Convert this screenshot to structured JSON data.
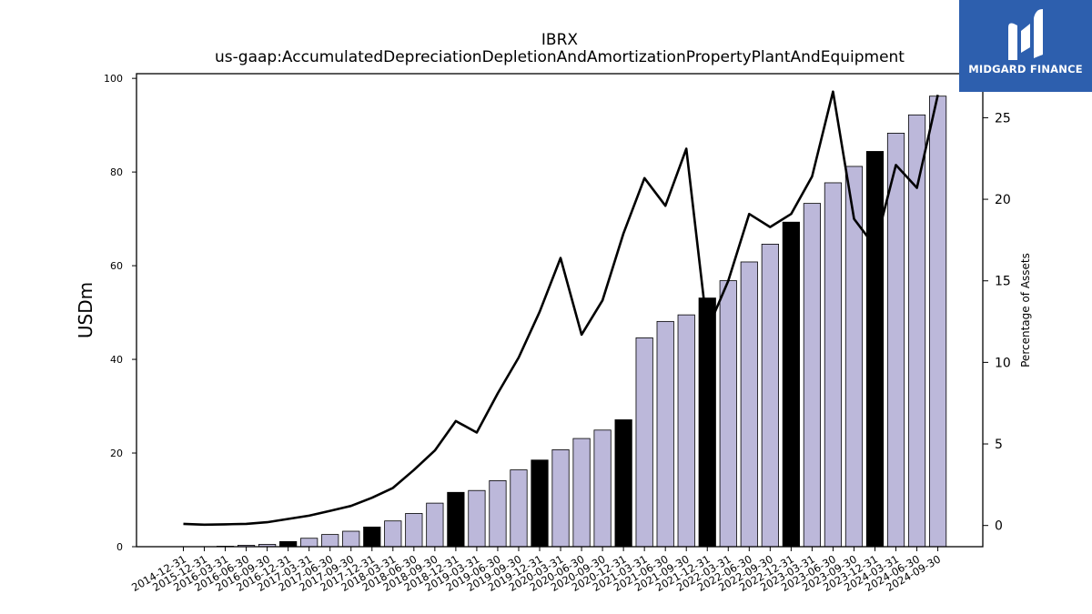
{
  "chart_data": {
    "type": "bar",
    "title": "IBRX",
    "subtitle": "us-gaap:AccumulatedDepreciationDepletionAndAmortizationPropertyPlantAndEquipment",
    "ylabel": "USDm",
    "y2label": "Percentage of Assets",
    "ylim": [
      0,
      101
    ],
    "y2lim": [
      -1.3,
      27.7
    ],
    "yticks": [
      0,
      20,
      40,
      60,
      80,
      100
    ],
    "y2ticks": [
      0,
      5,
      10,
      15,
      20,
      25
    ],
    "categories": [
      "2014-12-31",
      "2015-12-31",
      "2016-03-31",
      "2016-06-30",
      "2016-09-30",
      "2016-12-31",
      "2017-03-31",
      "2017-06-30",
      "2017-09-30",
      "2017-12-31",
      "2018-03-31",
      "2018-06-30",
      "2018-09-30",
      "2018-12-31",
      "2019-03-31",
      "2019-06-30",
      "2019-09-30",
      "2019-12-31",
      "2020-03-31",
      "2020-06-30",
      "2020-09-30",
      "2020-12-31",
      "2021-03-31",
      "2021-06-30",
      "2021-09-30",
      "2021-12-31",
      "2022-03-31",
      "2022-06-30",
      "2022-09-30",
      "2022-12-31",
      "2023-03-31",
      "2023-06-30",
      "2023-09-30",
      "2023-12-31",
      "2024-03-31",
      "2024-06-30",
      "2024-09-30"
    ],
    "series": [
      {
        "type": "bar",
        "values": [
          0.0,
          0.0,
          0.1,
          0.3,
          0.5,
          1.1,
          1.8,
          2.6,
          3.3,
          4.2,
          5.5,
          7.1,
          9.3,
          11.6,
          12.0,
          14.1,
          16.4,
          18.5,
          20.7,
          23.1,
          24.9,
          27.1,
          44.6,
          48.1,
          49.5,
          53.1,
          56.8,
          60.8,
          64.6,
          69.3,
          73.3,
          77.7,
          81.2,
          84.4,
          88.3,
          92.2,
          96.2
        ],
        "year_end_highlight": [
          false,
          true,
          false,
          false,
          false,
          true,
          false,
          false,
          false,
          true,
          false,
          false,
          false,
          true,
          false,
          false,
          false,
          true,
          false,
          false,
          false,
          true,
          false,
          false,
          false,
          true,
          false,
          false,
          false,
          true,
          false,
          false,
          false,
          true,
          false,
          false,
          false
        ]
      },
      {
        "type": "line",
        "axis": "right",
        "values": [
          0.1,
          0.05,
          0.07,
          0.1,
          0.2,
          0.4,
          0.6,
          0.9,
          1.2,
          1.7,
          2.3,
          3.4,
          4.6,
          6.4,
          5.7,
          8.1,
          10.3,
          13.1,
          16.4,
          11.7,
          13.8,
          17.9,
          21.3,
          19.6,
          23.1,
          12.0,
          15.0,
          19.1,
          18.3,
          19.1,
          21.4,
          26.6,
          18.8,
          17.1,
          22.1,
          20.7,
          26.4
        ]
      }
    ],
    "colors": {
      "bar": "#bcb8da",
      "bar_highlight": "#000000",
      "line": "#000000",
      "logo_bg": "#2d5fae"
    }
  },
  "logo": {
    "text": "MIDGARD FINANCE"
  }
}
